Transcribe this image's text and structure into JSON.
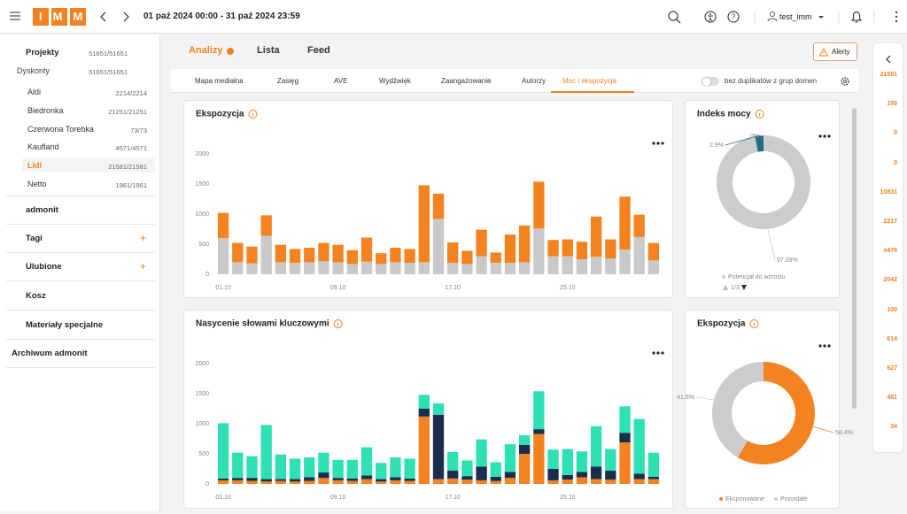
{
  "topbar": {
    "logo": "IMM",
    "date_range": "01 paź 2024 00:00 - 31 paź 2024 23:59",
    "user": "test_imm"
  },
  "sidebar": {
    "projects": {
      "label": "Projekty",
      "count": "51651/51651"
    },
    "group": {
      "label": "Dyskonty",
      "count": "51651/51651"
    },
    "items": [
      {
        "label": "Aldi",
        "count": "2214/2214"
      },
      {
        "label": "Biedronka",
        "count": "21251/21251"
      },
      {
        "label": "Czerwona Torebka",
        "count": "73/73"
      },
      {
        "label": "Kaufland",
        "count": "4571/4571"
      },
      {
        "label": "Lidl",
        "count": "21581/21581",
        "active": true
      },
      {
        "label": "Netto",
        "count": "1961/1961"
      }
    ],
    "sections": [
      "admonit",
      "Tagi",
      "Ulubione",
      "Kosz",
      "Materiały specjalne",
      "Archiwum admonit"
    ]
  },
  "tabs": [
    {
      "label": "Analizy",
      "active": true
    },
    {
      "label": "Lista"
    },
    {
      "label": "Feed"
    }
  ],
  "alerts": "Alerty",
  "subtabs": [
    {
      "label": "Mapa medialna"
    },
    {
      "label": "Zasięg"
    },
    {
      "label": "AVE"
    },
    {
      "label": "Wydźwięk"
    },
    {
      "label": "Zaangażowanie"
    },
    {
      "label": "Autorzy"
    },
    {
      "label": "Moc i ekspozycja",
      "active": true
    }
  ],
  "toggle_label": "bez duplikatów z grup domen",
  "rail": {
    "counts": [
      "21581",
      "159",
      "0",
      "0",
      "10831",
      "2217",
      "4476",
      "2042",
      "100",
      "614",
      "627",
      "481",
      "34"
    ]
  },
  "chart_data": [
    {
      "type": "bar",
      "stacked": true,
      "title": "Ekspozycja",
      "grid": false,
      "categories": [
        "01.10",
        null,
        null,
        null,
        null,
        null,
        null,
        null,
        "09.10",
        null,
        null,
        null,
        null,
        null,
        null,
        null,
        "17.10",
        null,
        null,
        null,
        null,
        null,
        null,
        null,
        "25.10",
        null,
        null,
        null,
        null,
        null,
        null
      ],
      "series": [
        {
          "color": "#c9c9c9",
          "values": [
            600,
            200,
            180,
            640,
            200,
            190,
            200,
            220,
            200,
            170,
            210,
            170,
            200,
            190,
            200,
            920,
            190,
            170,
            300,
            190,
            190,
            200,
            760,
            300,
            300,
            250,
            290,
            260,
            410,
            620,
            230
          ]
        },
        {
          "color": "#f58220",
          "values": [
            420,
            320,
            280,
            340,
            290,
            230,
            240,
            300,
            290,
            230,
            400,
            180,
            240,
            230,
            1280,
            420,
            340,
            220,
            440,
            170,
            470,
            610,
            780,
            270,
            280,
            290,
            670,
            320,
            880,
            370,
            290
          ]
        }
      ],
      "ylim": [
        0,
        2000
      ],
      "yticks": [
        0,
        500,
        1000,
        1500,
        2000
      ]
    },
    {
      "type": "bar",
      "stacked": true,
      "title": "Nasycenie słowami kluczowymi",
      "grid": false,
      "categories": [
        "01.10",
        null,
        null,
        null,
        null,
        null,
        null,
        null,
        "09.10",
        null,
        null,
        null,
        null,
        null,
        null,
        null,
        "17.10",
        null,
        null,
        null,
        null,
        null,
        null,
        null,
        "25.10",
        null,
        null,
        null,
        null,
        null,
        null
      ],
      "series": [
        {
          "color": "#f58220",
          "values": [
            60,
            60,
            50,
            40,
            50,
            40,
            50,
            100,
            60,
            50,
            80,
            40,
            60,
            50,
            1120,
            80,
            90,
            70,
            60,
            50,
            100,
            500,
            830,
            60,
            70,
            110,
            80,
            70,
            690,
            80,
            80
          ]
        },
        {
          "color": "#1b2d4f",
          "values": [
            30,
            40,
            50,
            40,
            30,
            40,
            60,
            90,
            40,
            40,
            60,
            40,
            50,
            40,
            130,
            1070,
            130,
            60,
            230,
            70,
            100,
            150,
            80,
            190,
            80,
            90,
            210,
            150,
            160,
            90,
            40
          ]
        },
        {
          "color": "#2fe0b5",
          "values": [
            920,
            420,
            360,
            900,
            410,
            340,
            330,
            330,
            300,
            310,
            470,
            270,
            330,
            330,
            230,
            190,
            310,
            260,
            450,
            240,
            460,
            160,
            630,
            320,
            430,
            340,
            670,
            360,
            440,
            910,
            400
          ]
        }
      ],
      "ylim": [
        0,
        2000
      ],
      "yticks": [
        0,
        500,
        1000,
        1500,
        2000
      ]
    },
    {
      "type": "donut",
      "title": "Indeks mocy",
      "values": [
        97.09,
        2.9,
        0
      ],
      "value_labels": [
        "97.09%",
        "2.9%",
        "0%"
      ],
      "colors": [
        "#cccccc",
        "#1e6e87",
        "#f58220"
      ],
      "labels": [
        "Potencjał do wzrostu",
        null,
        null
      ],
      "legend_page": "1/3"
    },
    {
      "type": "donut",
      "title": "Ekspozycja",
      "values": [
        58.4,
        41.6
      ],
      "value_labels": [
        "58.4%",
        "41.6%"
      ],
      "colors": [
        "#f58220",
        "#cccccc"
      ],
      "labels": [
        "Eksponowane",
        "Pozostałe"
      ]
    }
  ]
}
